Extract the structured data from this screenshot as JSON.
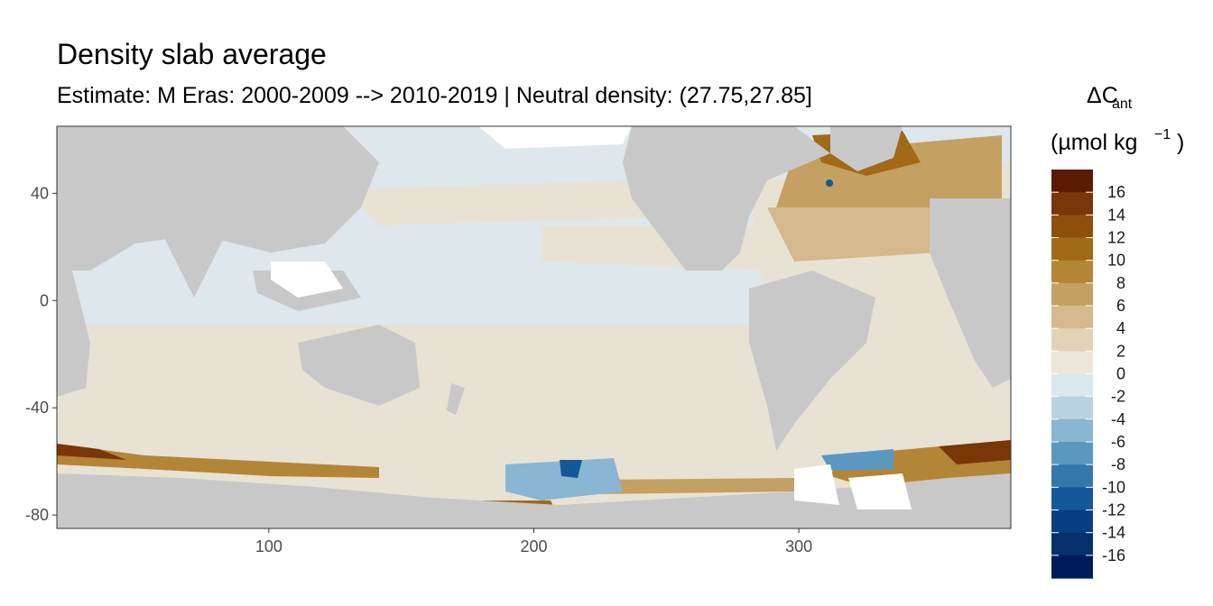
{
  "chart_data": {
    "type": "heatmap",
    "title": "Density slab average",
    "subtitle": "Estimate: M Eras: 2000-2009 --> 2010-2019 | Neutral density: (27.75,27.85]",
    "xlabel": "",
    "ylabel": "",
    "xlim": [
      20,
      380
    ],
    "ylim": [
      -85,
      65
    ],
    "x_ticks": [
      100,
      200,
      300
    ],
    "y_ticks": [
      40,
      0,
      -40,
      -80
    ],
    "grid": false,
    "legend": {
      "title_main": "ΔC",
      "title_sub": "ant",
      "title_units": "(µmol kg",
      "title_units_sup": "−1",
      "title_units_close": ")",
      "placement": "right",
      "levels": [
        "16",
        "14",
        "12",
        "10",
        "8",
        "6",
        "4",
        "2",
        "0",
        "-2",
        "-4",
        "-6",
        "-8",
        "-10",
        "-12",
        "-14",
        "-16"
      ],
      "colors": [
        "#5c1a05",
        "#7a3606",
        "#8f4f0a",
        "#a06a17",
        "#b38536",
        "#c4a062",
        "#d3b98d",
        "#e2d2b6",
        "#ede6da",
        "#dce7ed",
        "#b8d2e2",
        "#89b6d2",
        "#5b98c1",
        "#3378ad",
        "#14589a",
        "#083f83",
        "#06306c",
        "#001b5c"
      ]
    },
    "colors": {
      "land": "#c8c8c8",
      "ocean_low": "#e8e2d4",
      "ocean_neg": "#dce7ed",
      "no_data": "#ffffff"
    }
  }
}
